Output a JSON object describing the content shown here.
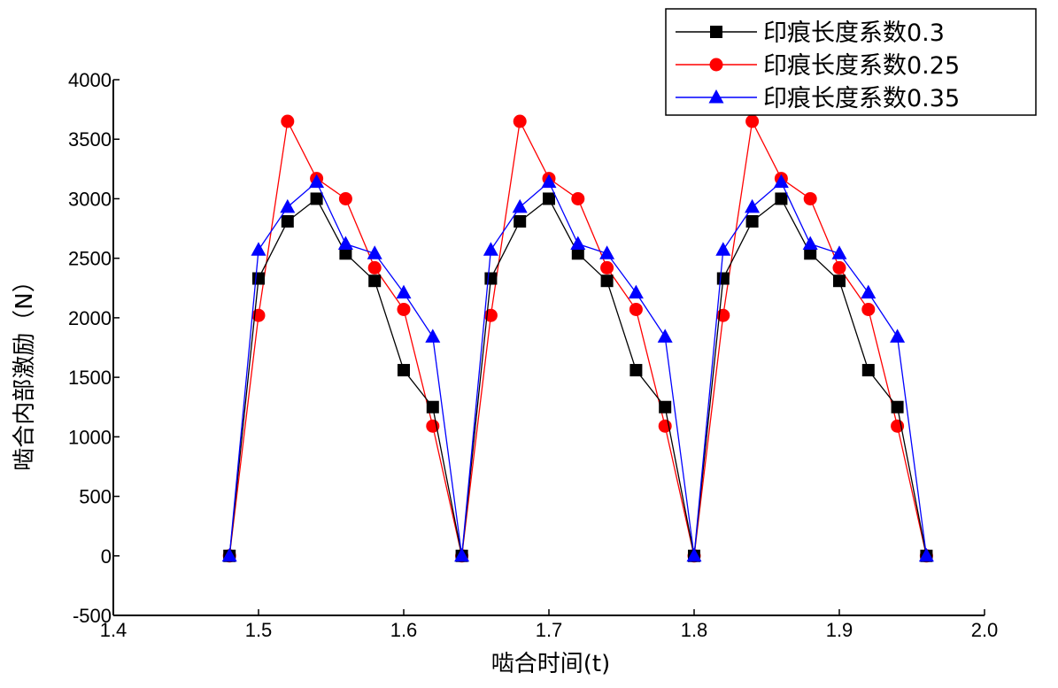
{
  "chart_data": {
    "type": "line",
    "xlabel": "啮合时间(t)",
    "ylabel": "啮合内部激励（N）",
    "xlim": [
      1.4,
      2.0
    ],
    "ylim": [
      -500,
      4000
    ],
    "x_ticks": [
      "1.4",
      "1.5",
      "1.6",
      "1.7",
      "1.8",
      "1.9",
      "2.0"
    ],
    "y_ticks": [
      "-500",
      "0",
      "500",
      "1000",
      "1500",
      "2000",
      "2500",
      "3000",
      "3500",
      "4000"
    ],
    "legend_position": "top-right",
    "grid": false,
    "series": [
      {
        "name": "印痕长度系数0.3",
        "color": "#000000",
        "marker": "square",
        "x": [
          1.48,
          1.5,
          1.52,
          1.54,
          1.56,
          1.58,
          1.6,
          1.62,
          1.64,
          1.66,
          1.68,
          1.7,
          1.72,
          1.74,
          1.76,
          1.78,
          1.8,
          1.82,
          1.84,
          1.86,
          1.88,
          1.9,
          1.92,
          1.94,
          1.96
        ],
        "y": [
          0,
          2330,
          2810,
          3000,
          2540,
          2310,
          1560,
          1250,
          0,
          2330,
          2810,
          3000,
          2540,
          2310,
          1560,
          1250,
          0,
          2330,
          2810,
          3000,
          2540,
          2310,
          1560,
          1250,
          0
        ]
      },
      {
        "name": "印痕长度系数0.25",
        "color": "#ff0000",
        "marker": "circle",
        "x": [
          1.48,
          1.5,
          1.52,
          1.54,
          1.56,
          1.58,
          1.6,
          1.62,
          1.64,
          1.66,
          1.68,
          1.7,
          1.72,
          1.74,
          1.76,
          1.78,
          1.8,
          1.82,
          1.84,
          1.86,
          1.88,
          1.9,
          1.92,
          1.94,
          1.96
        ],
        "y": [
          0,
          2020,
          3650,
          3170,
          3000,
          2420,
          2070,
          1090,
          0,
          2020,
          3650,
          3170,
          3000,
          2420,
          2070,
          1090,
          0,
          2020,
          3650,
          3170,
          3000,
          2420,
          2070,
          1090,
          0
        ]
      },
      {
        "name": "印痕长度系数0.35",
        "color": "#0000ff",
        "marker": "triangle",
        "x": [
          1.48,
          1.5,
          1.52,
          1.54,
          1.56,
          1.58,
          1.6,
          1.62,
          1.64,
          1.66,
          1.68,
          1.7,
          1.72,
          1.74,
          1.76,
          1.78,
          1.8,
          1.82,
          1.84,
          1.86,
          1.88,
          1.9,
          1.92,
          1.94,
          1.96
        ],
        "y": [
          0,
          2570,
          2930,
          3140,
          2620,
          2540,
          2210,
          1840,
          0,
          2570,
          2930,
          3140,
          2620,
          2540,
          2210,
          1840,
          0,
          2570,
          2930,
          3140,
          2620,
          2540,
          2210,
          1840,
          0
        ]
      }
    ]
  }
}
